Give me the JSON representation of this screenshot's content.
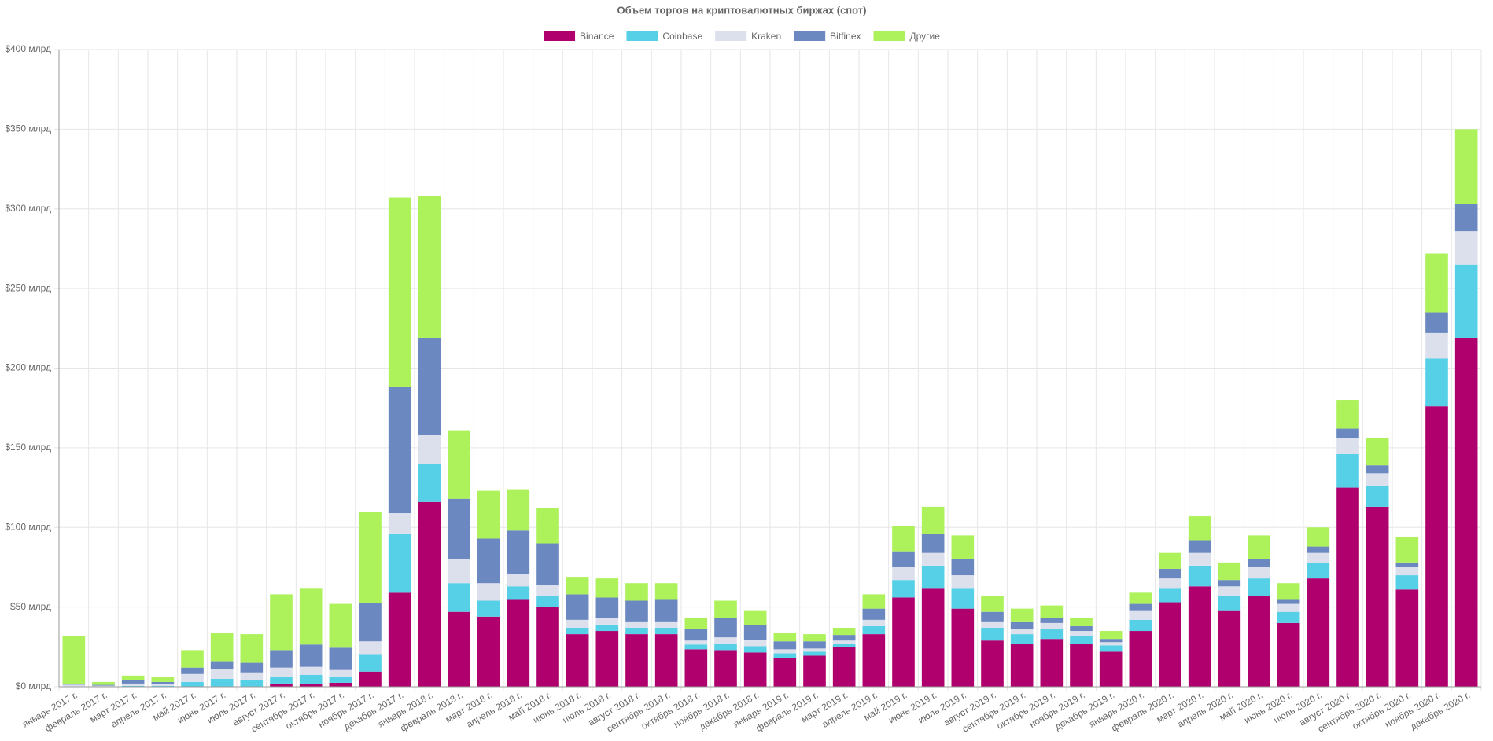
{
  "chart_data": {
    "type": "stacked_bar",
    "title": "Объем торгов на криптовалютных биржах (спот)",
    "categories": [
      "январь 2017 г.",
      "февраль 2017 г.",
      "март 2017 г.",
      "апрель 2017 г.",
      "май 2017 г.",
      "июнь 2017 г.",
      "июль 2017 г.",
      "август 2017 г.",
      "сентябрь 2017 г.",
      "октябрь 2017 г.",
      "ноябрь 2017 г.",
      "декабрь 2017 г.",
      "январь 2018 г.",
      "февраль 2018 г.",
      "март 2018 г.",
      "апрель 2018 г.",
      "май 2018 г.",
      "июнь 2018 г.",
      "июль 2018 г.",
      "август 2018 г.",
      "сентябрь 2018 г.",
      "октябрь 2018 г.",
      "ноябрь 2018 г.",
      "декабрь 2018 г.",
      "январь 2019 г.",
      "февраль 2019 г.",
      "март 2019 г.",
      "апрель 2019 г.",
      "май 2019 г.",
      "июнь 2019 г.",
      "июль 2019 г.",
      "август 2019 г.",
      "сентябрь 2019 г.",
      "октябрь 2019 г.",
      "ноябрь 2019 г.",
      "декабрь 2019 г.",
      "январь 2020 г.",
      "февраль 2020 г.",
      "март 2020 г.",
      "апрель 2020 г.",
      "май 2020 г.",
      "июнь 2020 г.",
      "июль 2020 г.",
      "август 2020 г.",
      "сентябрь 2020 г.",
      "октябрь 2020 г.",
      "ноябрь 2020 г.",
      "декабрь 2020 г."
    ],
    "series": [
      {
        "name": "Binance",
        "color": "#b0006e",
        "values": [
          0,
          0,
          0,
          0,
          0,
          0,
          0,
          2,
          1.5,
          2.5,
          9.5,
          59,
          116,
          47,
          44,
          55,
          50,
          33,
          35,
          33,
          33,
          23.5,
          23,
          21.5,
          18,
          19.5,
          25,
          33,
          56,
          62,
          49,
          29,
          27,
          30,
          27,
          22,
          35,
          53,
          63,
          48,
          57,
          40,
          68,
          125,
          113,
          61,
          176,
          219
        ]
      },
      {
        "name": "Coinbase",
        "color": "#55d0e6",
        "values": [
          0.3,
          0.2,
          0.5,
          0.5,
          3,
          5,
          4,
          4,
          6,
          4,
          11,
          37,
          24,
          18,
          10,
          8,
          7,
          4,
          4,
          4,
          4,
          3,
          4,
          4,
          3,
          2.5,
          2,
          5,
          11,
          14,
          13,
          8,
          6,
          6,
          5,
          4,
          7,
          9,
          13,
          9,
          11,
          7,
          10,
          21,
          13,
          9,
          30,
          46
        ]
      },
      {
        "name": "Kraken",
        "color": "#dce0ec",
        "values": [
          1,
          0.5,
          1.5,
          1,
          5,
          6,
          5,
          6,
          5,
          4,
          8,
          13,
          18,
          15,
          11,
          8,
          7,
          5,
          4,
          4,
          4,
          2.5,
          4,
          4,
          2.5,
          2,
          2,
          4,
          8,
          8,
          8,
          4,
          3,
          4,
          3,
          2,
          6,
          6,
          8,
          6,
          7,
          5,
          6,
          10,
          8,
          5,
          16,
          21
        ]
      },
      {
        "name": "Bitfinex",
        "color": "#6b88c0",
        "values": [
          0.3,
          0.5,
          2,
          1.5,
          4,
          5,
          6,
          11,
          14,
          14,
          24,
          79,
          61,
          38,
          28,
          27,
          26,
          16,
          13,
          13,
          14,
          7,
          12,
          9,
          5,
          4.5,
          3.5,
          7,
          10,
          12,
          10,
          6,
          5,
          3,
          3,
          2,
          4,
          6,
          8,
          4,
          5,
          3,
          4,
          6,
          5,
          3,
          13,
          17
        ]
      },
      {
        "name": "Другие",
        "color": "#adf25b",
        "values": [
          30,
          1.8,
          3,
          3,
          11,
          18,
          18,
          35,
          35.5,
          27.5,
          57.5,
          119,
          89,
          43,
          30,
          26,
          22,
          11,
          12,
          11,
          10,
          7,
          11,
          9.5,
          5.5,
          4.5,
          4.5,
          9,
          16,
          17,
          15,
          10,
          8,
          8,
          5,
          5,
          7,
          10,
          15,
          11,
          15,
          10,
          12,
          18,
          17,
          16,
          37,
          47
        ]
      }
    ],
    "ylim": [
      0,
      400
    ],
    "yticks": [
      {
        "value": 0,
        "label": "$0 млрд"
      },
      {
        "value": 50,
        "label": "$50 млрд"
      },
      {
        "value": 100,
        "label": "$100 млрд"
      },
      {
        "value": 150,
        "label": "$150 млрд"
      },
      {
        "value": 200,
        "label": "$200 млрд"
      },
      {
        "value": 250,
        "label": "$250 млрд"
      },
      {
        "value": 300,
        "label": "$300 млрд"
      },
      {
        "value": 350,
        "label": "$350 млрд"
      },
      {
        "value": 400,
        "label": "$400 млрд"
      }
    ],
    "grid": true
  }
}
